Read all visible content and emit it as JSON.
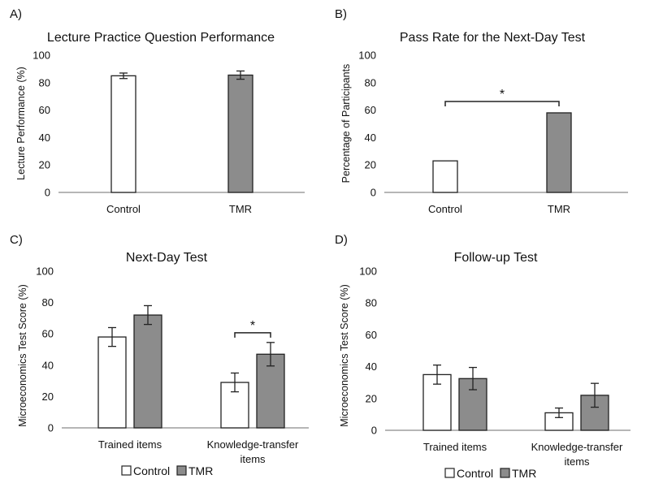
{
  "chart_data": [
    {
      "panel": "A)",
      "type": "bar",
      "title": "Lecture Practice Question Performance",
      "xlabel": "",
      "ylabel": "Lecture Performance (%)",
      "ylim": [
        0,
        100
      ],
      "yticks": [
        0,
        20,
        40,
        60,
        80,
        100
      ],
      "categories": [
        "Control",
        "TMR"
      ],
      "series": [
        {
          "values": [
            85,
            85.5
          ],
          "errors": [
            2,
            3
          ],
          "fills": [
            "#ffffff",
            "#8c8c8c"
          ]
        }
      ],
      "significance": []
    },
    {
      "panel": "B)",
      "type": "bar",
      "title": "Pass Rate for the Next-Day Test",
      "xlabel": "",
      "ylabel": "Percentage of Participants",
      "ylim": [
        0,
        100
      ],
      "yticks": [
        0,
        20,
        40,
        60,
        80,
        100
      ],
      "categories": [
        "Control",
        "TMR"
      ],
      "series": [
        {
          "values": [
            23,
            58
          ],
          "fills": [
            "#ffffff",
            "#8c8c8c"
          ]
        }
      ],
      "significance": [
        {
          "between": [
            "Control",
            "TMR"
          ],
          "label": "*"
        }
      ]
    },
    {
      "panel": "C)",
      "type": "bar",
      "title": "Next-Day Test",
      "xlabel": "",
      "ylabel": "Microeconomics Test Score (%)",
      "ylim": [
        0,
        100
      ],
      "yticks": [
        0,
        20,
        40,
        60,
        80,
        100
      ],
      "categories": [
        "Trained items",
        "Knowledge-transfer items"
      ],
      "series": [
        {
          "name": "Control",
          "values": [
            58,
            29
          ],
          "errors": [
            6,
            6
          ],
          "fill": "#ffffff"
        },
        {
          "name": "TMR",
          "values": [
            72,
            47
          ],
          "errors": [
            6,
            7.5
          ],
          "fill": "#8c8c8c"
        }
      ],
      "significance": [
        {
          "category": "Knowledge-transfer items",
          "label": "*"
        }
      ],
      "legend": [
        "Control",
        "TMR"
      ],
      "legend_position": "bottom"
    },
    {
      "panel": "D)",
      "type": "bar",
      "title": "Follow-up Test",
      "xlabel": "",
      "ylabel": "Microeconomics Test Score (%)",
      "ylim": [
        0,
        100
      ],
      "yticks": [
        0,
        20,
        40,
        60,
        80,
        100
      ],
      "categories": [
        "Trained items",
        "Knowledge-transfer items"
      ],
      "series": [
        {
          "name": "Control",
          "values": [
            35,
            11
          ],
          "errors": [
            6,
            3
          ],
          "fill": "#ffffff"
        },
        {
          "name": "TMR",
          "values": [
            32.5,
            22
          ],
          "errors": [
            7,
            7.5
          ],
          "fill": "#8c8c8c"
        }
      ],
      "significance": [],
      "legend": [
        "Control",
        "TMR"
      ],
      "legend_position": "bottom"
    }
  ]
}
